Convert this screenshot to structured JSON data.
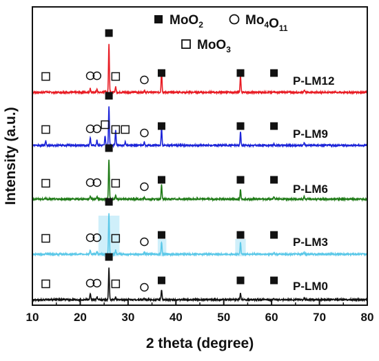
{
  "chart_data": {
    "type": "line",
    "xlabel": "2 theta (degree)",
    "ylabel": "Intensity (a.u.)",
    "xlim": [
      10,
      80
    ],
    "xticks": [
      10,
      20,
      30,
      40,
      50,
      60,
      70,
      80
    ],
    "yticks_shown": false,
    "grid": false,
    "legend": {
      "placement": "top-right",
      "entries": [
        {
          "marker": "filled-square",
          "base": "MoO",
          "sub": "2"
        },
        {
          "marker": "open-circle",
          "base": "Mo",
          "sub1": "4",
          "mid": "O",
          "sub2": "11"
        },
        {
          "marker": "open-square",
          "base": "MoO",
          "sub": "3"
        }
      ]
    },
    "peak_positions": {
      "MoO2": [
        26.0,
        37.0,
        53.5,
        60.5,
        66.8
      ],
      "Mo4O11": [
        22.1,
        23.5,
        33.4
      ],
      "MoO3": [
        12.8,
        27.4,
        29.4
      ]
    },
    "series": [
      {
        "name": "P-LM12",
        "color": "#e81c24",
        "peaks": [
          [
            12.8,
            0.03
          ],
          [
            22.1,
            0.08
          ],
          [
            23.5,
            0.06
          ],
          [
            25.2,
            0.04
          ],
          [
            26.0,
            1.0
          ],
          [
            27.4,
            0.12
          ],
          [
            33.4,
            0.05
          ],
          [
            37.0,
            0.45
          ],
          [
            53.5,
            0.35
          ],
          [
            60.5,
            0.03
          ],
          [
            66.8,
            0.05
          ]
        ],
        "markers": {
          "filled": [
            26.0,
            37.0,
            53.5,
            60.5
          ],
          "circle": [
            22.1,
            23.5,
            33.4
          ],
          "open": [
            12.8,
            27.4
          ]
        }
      },
      {
        "name": "P-LM9",
        "color": "#1c24d8",
        "peaks": [
          [
            12.8,
            0.12
          ],
          [
            22.1,
            0.2
          ],
          [
            23.5,
            0.15
          ],
          [
            25.2,
            0.25
          ],
          [
            26.0,
            1.0
          ],
          [
            27.4,
            0.4
          ],
          [
            29.4,
            0.1
          ],
          [
            33.4,
            0.08
          ],
          [
            37.0,
            0.45
          ],
          [
            53.5,
            0.35
          ],
          [
            60.5,
            0.04
          ],
          [
            66.8,
            0.06
          ]
        ],
        "markers": {
          "filled": [
            26.0,
            37.0,
            53.5,
            60.5
          ],
          "circle": [
            22.1,
            23.5,
            33.4
          ],
          "open": [
            12.8,
            25.2,
            27.4,
            29.4
          ]
        }
      },
      {
        "name": "P-LM6",
        "color": "#1e7a16",
        "peaks": [
          [
            12.8,
            0.02
          ],
          [
            22.1,
            0.08
          ],
          [
            23.5,
            0.06
          ],
          [
            26.0,
            1.0
          ],
          [
            27.4,
            0.08
          ],
          [
            33.4,
            0.04
          ],
          [
            37.0,
            0.35
          ],
          [
            53.5,
            0.25
          ],
          [
            60.5,
            0.06
          ],
          [
            66.8,
            0.06
          ]
        ],
        "markers": {
          "filled": [
            26.0,
            37.0,
            53.5,
            60.5
          ],
          "circle": [
            22.1,
            23.5,
            33.4
          ],
          "open": [
            12.8,
            27.4
          ]
        }
      },
      {
        "name": "P-LM3",
        "color": "#5bc8e8",
        "peaks": [
          [
            12.8,
            0.03
          ],
          [
            22.1,
            0.1
          ],
          [
            23.5,
            0.08
          ],
          [
            26.0,
            1.0
          ],
          [
            27.4,
            0.1
          ],
          [
            33.4,
            0.05
          ],
          [
            37.0,
            0.3
          ],
          [
            53.5,
            0.28
          ],
          [
            60.5,
            0.05
          ],
          [
            66.8,
            0.05
          ]
        ],
        "markers": {
          "filled": [
            26.0,
            37.0,
            53.5,
            60.5
          ],
          "circle": [
            22.1,
            23.5,
            33.4
          ],
          "open": [
            12.8,
            27.4
          ]
        }
      },
      {
        "name": "P-LM0",
        "color": "#111111",
        "peaks": [
          [
            12.8,
            0.02
          ],
          [
            22.1,
            0.18
          ],
          [
            23.5,
            0.1
          ],
          [
            26.0,
            1.0
          ],
          [
            27.4,
            0.08
          ],
          [
            33.4,
            0.04
          ],
          [
            37.0,
            0.3
          ],
          [
            53.5,
            0.2
          ],
          [
            60.5,
            0.04
          ],
          [
            66.8,
            0.04
          ]
        ],
        "markers": {
          "filled": [
            26.0,
            37.0,
            53.5,
            60.5
          ],
          "circle": [
            22.1,
            23.5,
            33.4
          ],
          "open": [
            12.8,
            27.4
          ]
        }
      }
    ]
  }
}
